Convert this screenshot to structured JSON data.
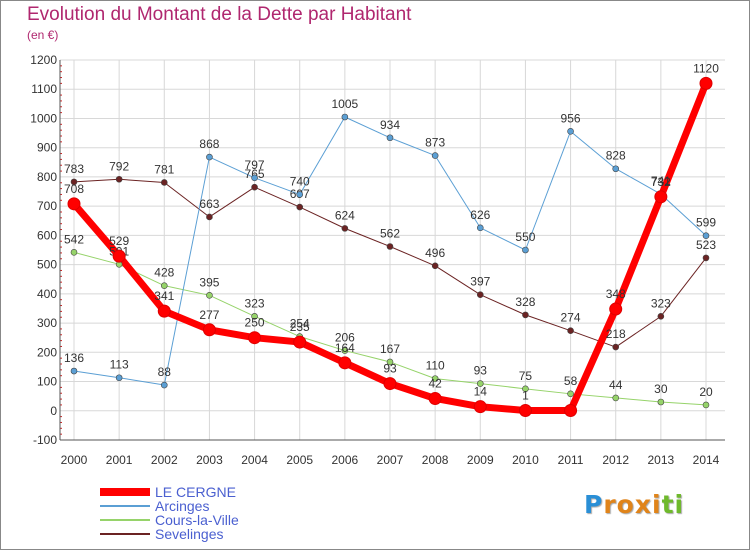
{
  "title": "Evolution du Montant de la Dette par Habitant",
  "unit": "(en €)",
  "brand": {
    "letters": [
      "P",
      "r",
      "o",
      "x",
      "i",
      "t",
      "i"
    ],
    "colors": [
      "#2a8fd6",
      "#e0841a",
      "#e0841a",
      "#e0841a",
      "#e0841a",
      "#6fb92c",
      "#6fb92c"
    ]
  },
  "chart_data": {
    "type": "line",
    "categories": [
      "2000",
      "2001",
      "2002",
      "2003",
      "2004",
      "2005",
      "2006",
      "2007",
      "2008",
      "2009",
      "2010",
      "2011",
      "2012",
      "2013",
      "2014"
    ],
    "ylim": [
      -100,
      1200
    ],
    "yticks": [
      "-100",
      "0",
      "100",
      "200",
      "300",
      "400",
      "500",
      "600",
      "700",
      "800",
      "900",
      "1000",
      "1100",
      "1200"
    ],
    "grid": true,
    "legend_position": "bottom-left",
    "series": [
      {
        "name": "Sevelinges",
        "color": "#6b2323",
        "width": 1,
        "values": [
          783,
          792,
          781,
          663,
          765,
          697,
          624,
          562,
          496,
          397,
          328,
          274,
          218,
          323,
          523
        ],
        "labels": [
          "783",
          "792",
          "781",
          "663",
          "765",
          "697",
          "624",
          "562",
          "496",
          "397",
          "328",
          "274",
          "218",
          "323",
          "523"
        ]
      },
      {
        "name": "Cours-la-Ville",
        "color": "#96d36a",
        "width": 1,
        "values": [
          542,
          501,
          428,
          395,
          323,
          254,
          206,
          167,
          110,
          93,
          75,
          58,
          44,
          30,
          20
        ],
        "labels": [
          "542",
          "501",
          "428",
          "395",
          "323",
          "254",
          "206",
          "167",
          "110",
          "93",
          "75",
          "58",
          "44",
          "30",
          "20"
        ]
      },
      {
        "name": "Arcinges",
        "color": "#5b9fd4",
        "width": 1,
        "values": [
          136,
          113,
          88,
          868,
          797,
          740,
          1005,
          934,
          873,
          626,
          550,
          956,
          828,
          741,
          599
        ],
        "labels": [
          "136",
          "113",
          "88",
          "868",
          "797",
          "740",
          "1005",
          "934",
          "873",
          "626",
          "550",
          "956",
          "828",
          "741",
          "599"
        ]
      },
      {
        "name": "LE CERGNE",
        "color": "#ff0000",
        "width": 7,
        "values": [
          708,
          529,
          341,
          277,
          250,
          235,
          164,
          93,
          42,
          14,
          1,
          1,
          348,
          732,
          1120
        ],
        "labels": [
          "708",
          "529",
          "341",
          "277",
          "250",
          "235",
          "164",
          "93",
          "42",
          "14",
          "1",
          "",
          "348",
          "732",
          "1120"
        ]
      }
    ],
    "legend_order": [
      "LE CERGNE",
      "Arcinges",
      "Cours-la-Ville",
      "Sevelinges"
    ]
  }
}
